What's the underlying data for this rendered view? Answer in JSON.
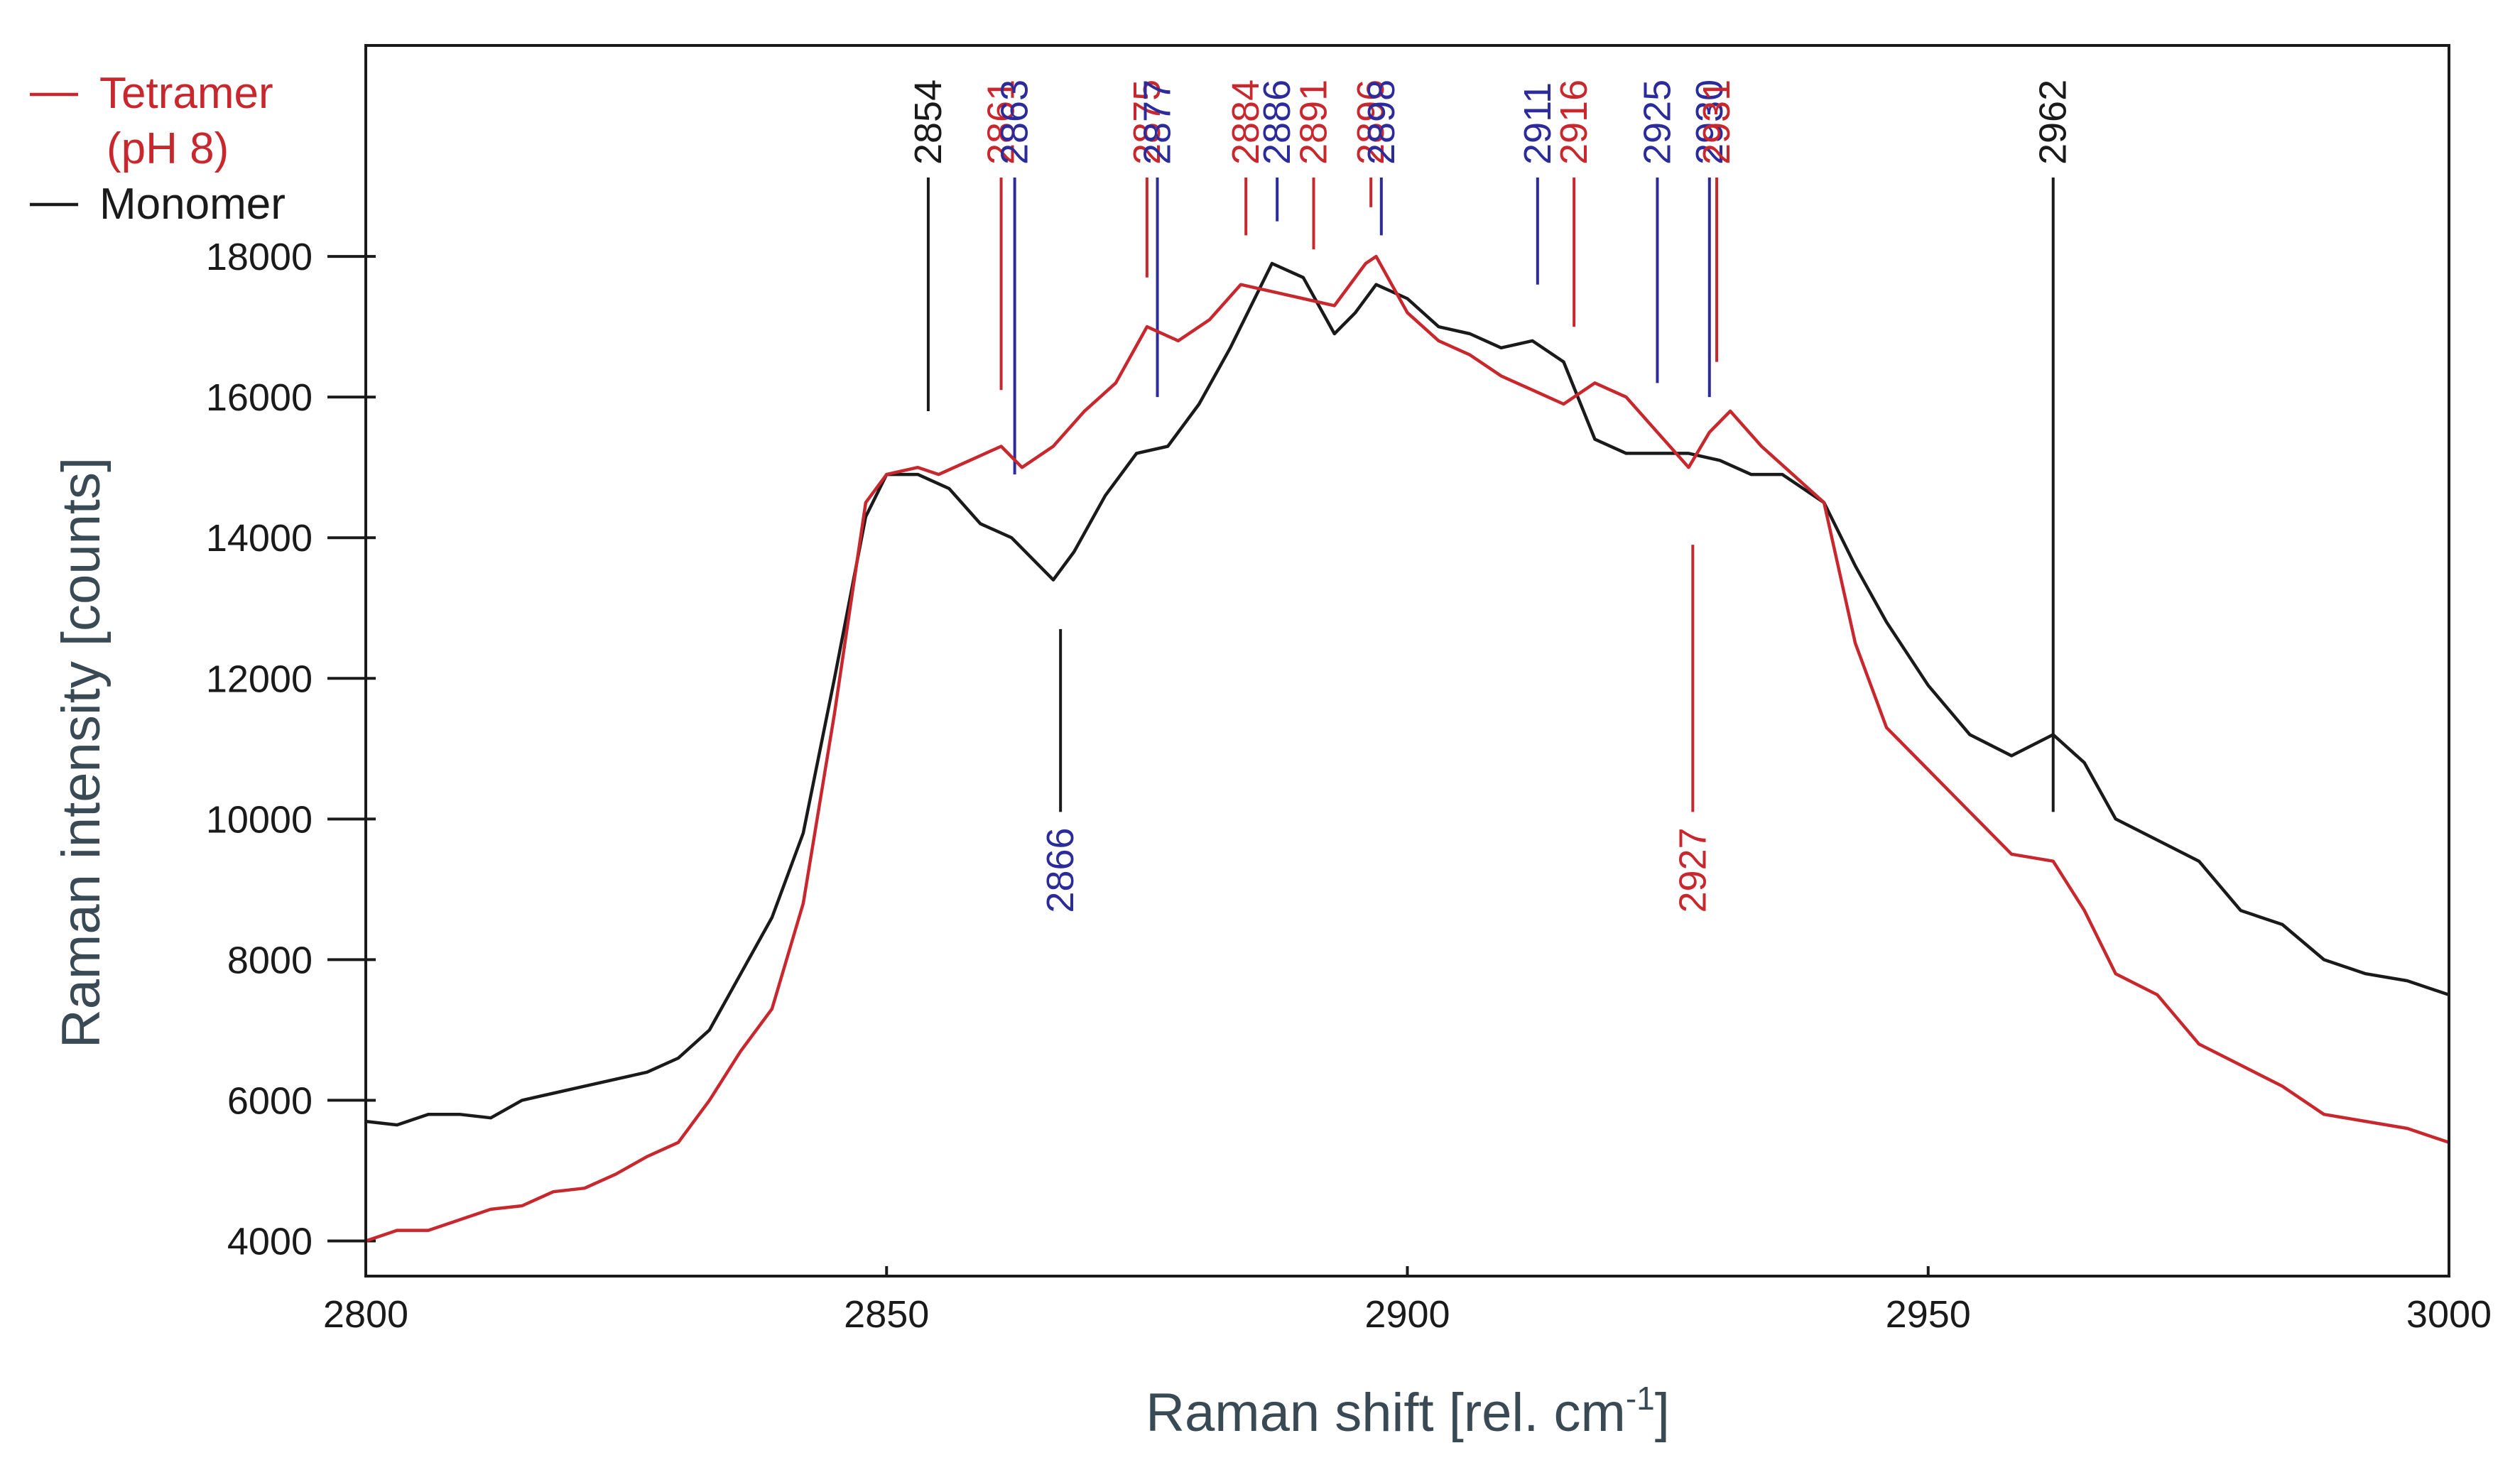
{
  "chart_data": {
    "type": "line",
    "title": "",
    "xlabel": "Raman shift [rel. cm",
    "xlabel_sup": "-1",
    "xlabel_end": "]",
    "ylabel": "Raman intensity [counts]",
    "xlim": [
      2800,
      3000
    ],
    "ylim": [
      3500,
      21000
    ],
    "xticks": [
      2800,
      2850,
      2900,
      2950,
      3000
    ],
    "yticks": [
      4000,
      6000,
      8000,
      10000,
      12000,
      14000,
      16000,
      18000
    ],
    "xtick_labels": [
      "2800",
      "2850",
      "2900",
      "2950",
      "3000"
    ],
    "ytick_labels": [
      "4000",
      "6000",
      "8000",
      "10000",
      "12000",
      "14000",
      "16000",
      "18000"
    ],
    "legend": {
      "position": "top-left, outside",
      "entries": [
        {
          "label_line1": "Tetramer",
          "label_line2": "(pH 8)",
          "color": "#c8282d"
        },
        {
          "label_line1": "Monomer",
          "color": "#1a1a1a"
        }
      ]
    },
    "series": [
      {
        "name": "Tetramer (pH 8)",
        "color": "#c8282d",
        "x": [
          2800,
          2803,
          2806,
          2809,
          2812,
          2815,
          2818,
          2821,
          2824,
          2827,
          2830,
          2833,
          2836,
          2839,
          2842,
          2845,
          2848,
          2850,
          2853,
          2855,
          2858,
          2861,
          2863,
          2866,
          2869,
          2872,
          2875,
          2878,
          2881,
          2884,
          2887,
          2890,
          2893,
          2896,
          2897,
          2900,
          2903,
          2906,
          2909,
          2912,
          2915,
          2918,
          2921,
          2924,
          2927,
          2929,
          2931,
          2934,
          2937,
          2940,
          2943,
          2946,
          2950,
          2954,
          2958,
          2962,
          2965,
          2968,
          2972,
          2976,
          2980,
          2984,
          2988,
          2992,
          2996,
          3000
        ],
        "values": [
          4000,
          4150,
          4150,
          4300,
          4450,
          4500,
          4700,
          4750,
          4950,
          5200,
          5400,
          6000,
          6700,
          7300,
          8800,
          11500,
          14500,
          14900,
          15000,
          14900,
          15100,
          15300,
          15000,
          15300,
          15800,
          16200,
          17000,
          16800,
          17100,
          17600,
          17500,
          17400,
          17300,
          17900,
          18000,
          17200,
          16800,
          16600,
          16300,
          16100,
          15900,
          16200,
          16000,
          15500,
          15000,
          15500,
          15800,
          15300,
          14900,
          14500,
          12500,
          11300,
          10700,
          10100,
          9500,
          9400,
          8700,
          7800,
          7500,
          6800,
          6500,
          6200,
          5800,
          5700,
          5600,
          5400
        ]
      },
      {
        "name": "Monomer",
        "color": "#1a1a1a",
        "x": [
          2800,
          2803,
          2806,
          2809,
          2812,
          2815,
          2818,
          2821,
          2824,
          2827,
          2830,
          2833,
          2836,
          2839,
          2842,
          2845,
          2848,
          2850,
          2853,
          2856,
          2859,
          2862,
          2864,
          2866,
          2868,
          2871,
          2874,
          2877,
          2880,
          2883,
          2886,
          2887,
          2890,
          2893,
          2895,
          2897,
          2900,
          2903,
          2906,
          2909,
          2912,
          2915,
          2918,
          2921,
          2924,
          2927,
          2930,
          2933,
          2936,
          2940,
          2943,
          2946,
          2950,
          2954,
          2958,
          2962,
          2965,
          2968,
          2972,
          2976,
          2980,
          2984,
          2988,
          2992,
          2996,
          3000
        ],
        "values": [
          5700,
          5650,
          5800,
          5800,
          5750,
          6000,
          6100,
          6200,
          6300,
          6400,
          6600,
          7000,
          7800,
          8600,
          9800,
          12000,
          14300,
          14900,
          14900,
          14700,
          14200,
          14000,
          13700,
          13400,
          13800,
          14600,
          15200,
          15300,
          15900,
          16700,
          17600,
          17900,
          17700,
          16900,
          17200,
          17600,
          17400,
          17000,
          16900,
          16700,
          16800,
          16500,
          15400,
          15200,
          15200,
          15200,
          15100,
          14900,
          14900,
          14500,
          13600,
          12800,
          11900,
          11200,
          10900,
          11200,
          10800,
          10000,
          9700,
          9400,
          8700,
          8500,
          8000,
          7800,
          7700,
          7500
        ]
      }
    ],
    "annotations": [
      {
        "label": "2854",
        "x": 2854,
        "color": "#1a1a1a",
        "y_top": 20500,
        "y_bottom": 15800,
        "label_pos": "above"
      },
      {
        "label": "2861",
        "x": 2861,
        "color": "#c8282d",
        "y_top": 20500,
        "y_bottom": 16100,
        "label_pos": "above"
      },
      {
        "label": "2863",
        "x": 2862.3,
        "color": "#2b2b9b",
        "y_top": 20500,
        "y_bottom": 14900,
        "label_pos": "above"
      },
      {
        "label": "2875",
        "x": 2875,
        "color": "#c8282d",
        "y_top": 20500,
        "y_bottom": 17700,
        "label_pos": "above"
      },
      {
        "label": "2877",
        "x": 2876,
        "color": "#2b2b9b",
        "y_top": 20500,
        "y_bottom": 16000,
        "label_pos": "above"
      },
      {
        "label": "2884",
        "x": 2884.5,
        "color": "#c8282d",
        "y_top": 20500,
        "y_bottom": 18300,
        "label_pos": "above"
      },
      {
        "label": "2886",
        "x": 2887.5,
        "color": "#2b2b9b",
        "y_top": 20500,
        "y_bottom": 18500,
        "label_pos": "above"
      },
      {
        "label": "2891",
        "x": 2891,
        "color": "#c8282d",
        "y_top": 20500,
        "y_bottom": 18100,
        "label_pos": "above"
      },
      {
        "label": "2896",
        "x": 2896.5,
        "color": "#c8282d",
        "y_top": 20500,
        "y_bottom": 18700,
        "label_pos": "above"
      },
      {
        "label": "2898",
        "x": 2897.5,
        "color": "#2b2b9b",
        "y_top": 20500,
        "y_bottom": 18300,
        "label_pos": "above"
      },
      {
        "label": "2911",
        "x": 2912.5,
        "color": "#2b2b9b",
        "y_top": 20500,
        "y_bottom": 17600,
        "label_pos": "above"
      },
      {
        "label": "2916",
        "x": 2916,
        "color": "#c8282d",
        "y_top": 20500,
        "y_bottom": 17000,
        "label_pos": "above"
      },
      {
        "label": "2925",
        "x": 2924,
        "color": "#2b2b9b",
        "y_top": 20500,
        "y_bottom": 16200,
        "label_pos": "above"
      },
      {
        "label": "2930",
        "x": 2929,
        "color": "#2b2b9b",
        "y_top": 20500,
        "y_bottom": 16000,
        "label_pos": "above"
      },
      {
        "label": "2931",
        "x": 2929.7,
        "color": "#c8282d",
        "y_top": 20500,
        "y_bottom": 16500,
        "label_pos": "above"
      },
      {
        "label": "2962",
        "x": 2962,
        "color": "#1a1a1a",
        "y_top": 20500,
        "y_bottom": 10100,
        "label_pos": "above"
      },
      {
        "label": "2866",
        "x": 2866.7,
        "color": "#1a1a1a",
        "label_color": "#2b2b9b",
        "y_top": 12700,
        "y_bottom": 10100,
        "label_pos": "below"
      },
      {
        "label": "2927",
        "x": 2927.4,
        "color": "#c8282d",
        "y_top": 13900,
        "y_bottom": 10100,
        "label_pos": "below"
      }
    ]
  }
}
